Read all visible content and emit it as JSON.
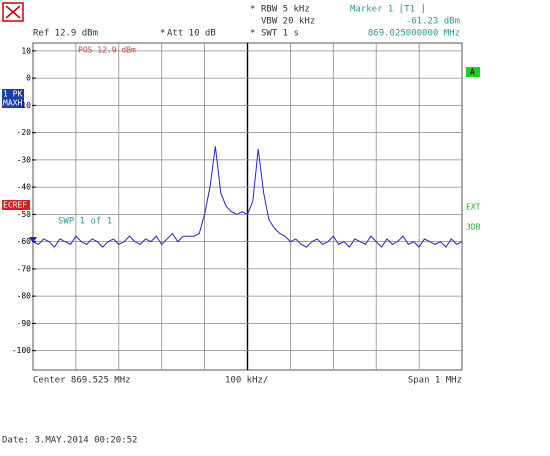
{
  "chart_data": {
    "type": "line",
    "header": {
      "rbw": "RBW 5 kHz",
      "vbw": "VBW 20 kHz",
      "swt": "SWT 1 s",
      "ref": "Ref  12.9 dBm",
      "att": "Att  10 dB",
      "pos": "POS 12.9 dBm",
      "trace_mode_1": "1 PK",
      "trace_mode_2": "MAXH",
      "left_flag": "ECREF",
      "right_flag": "A",
      "ext": "EXT",
      "db3": "3DB",
      "sweep": "SWP   1 of   1"
    },
    "marker": {
      "label": "Marker 1 [T1 ]",
      "x": 869.025,
      "x_label": "869.025000000 MHz",
      "value": -61.23,
      "value_label": "-61.23 dBm"
    },
    "center": "Center 869.525 MHz",
    "per_div": "100 kHz/",
    "span": "Span 1 MHz",
    "date": "Date: 3.MAY.2014   00:20:52",
    "xlim": [
      869.025,
      870.025
    ],
    "ylim": [
      -107.1,
      12.9
    ],
    "yticks": [
      10,
      0,
      -10,
      -20,
      -30,
      -40,
      -50,
      -60,
      -70,
      -80,
      -90,
      -100
    ],
    "grid": true,
    "x": [
      869.025,
      869.0375,
      869.05,
      869.0625,
      869.075,
      869.0875,
      869.1,
      869.1125,
      869.125,
      869.1375,
      869.15,
      869.1625,
      869.175,
      869.1875,
      869.2,
      869.2125,
      869.225,
      869.2375,
      869.25,
      869.2625,
      869.275,
      869.2875,
      869.3,
      869.3125,
      869.325,
      869.3375,
      869.35,
      869.3625,
      869.375,
      869.3875,
      869.4,
      869.4125,
      869.425,
      869.4375,
      869.45,
      869.4625,
      869.475,
      869.4875,
      869.5,
      869.5125,
      869.525,
      869.5375,
      869.55,
      869.5625,
      869.575,
      869.5875,
      869.6,
      869.6125,
      869.625,
      869.6375,
      869.65,
      869.6625,
      869.675,
      869.6875,
      869.7,
      869.7125,
      869.725,
      869.7375,
      869.75,
      869.7625,
      869.775,
      869.7875,
      869.8,
      869.8125,
      869.825,
      869.8375,
      869.85,
      869.8625,
      869.875,
      869.8875,
      869.9,
      869.9125,
      869.925,
      869.9375,
      869.95,
      869.9625,
      869.975,
      869.9875,
      870.0,
      870.0125,
      870.025
    ],
    "series": [
      {
        "name": "1 PK MAXH",
        "color": "#2424c8",
        "values": [
          -60,
          -61,
          -59,
          -60,
          -62,
          -59,
          -60,
          -61,
          -58,
          -60,
          -61,
          -59,
          -60,
          -62,
          -60,
          -59,
          -61,
          -60,
          -58,
          -60,
          -61,
          -59,
          -60,
          -58,
          -61,
          -59,
          -57,
          -60,
          -58,
          -58,
          -58,
          -57,
          -50,
          -40,
          -25,
          -42,
          -47,
          -49,
          -50,
          -49,
          -50,
          -45,
          -26,
          -42,
          -52,
          -55,
          -57,
          -58,
          -60,
          -59,
          -61,
          -62,
          -60,
          -59,
          -61,
          -60,
          -58,
          -61,
          -60,
          -62,
          -59,
          -60,
          -61,
          -58,
          -60,
          -62,
          -59,
          -61,
          -60,
          -58,
          -61,
          -60,
          -62,
          -59,
          -60,
          -61,
          -60,
          -62,
          -59,
          -61,
          -60
        ]
      }
    ]
  }
}
